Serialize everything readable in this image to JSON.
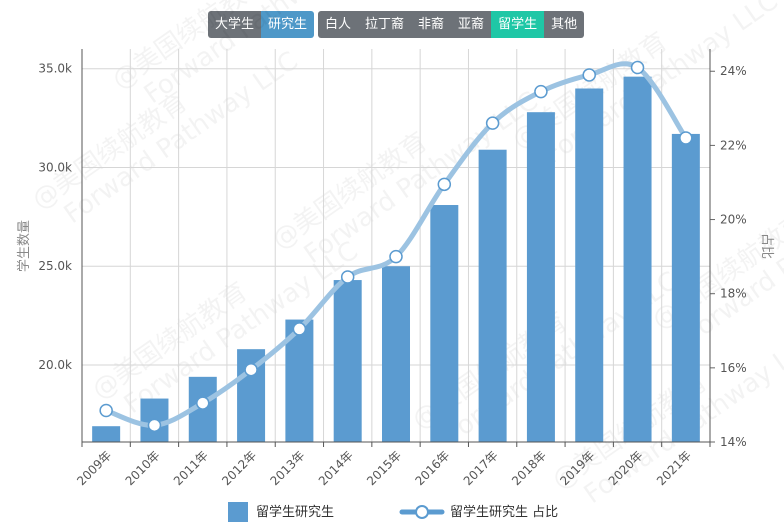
{
  "filters": {
    "level": [
      {
        "label": "大学生",
        "active": false
      },
      {
        "label": "研究生",
        "active": true
      }
    ],
    "group": [
      {
        "label": "白人",
        "active": false
      },
      {
        "label": "拉丁裔",
        "active": false
      },
      {
        "label": "非裔",
        "active": false
      },
      {
        "label": "亚裔",
        "active": false
      },
      {
        "label": "留学生",
        "active": true
      },
      {
        "label": "其他",
        "active": false
      }
    ]
  },
  "watermark": {
    "cn": "@美国续航教育",
    "en": "Forward Pathway LLC"
  },
  "colors": {
    "bar": "#5b9bd0",
    "line": "#9cc3e2",
    "active_level": "#4e98c8",
    "active_group": "#1fc7a6",
    "button": "#6d7278"
  },
  "chart_data": {
    "type": "bar",
    "categories": [
      "2009年",
      "2010年",
      "2011年",
      "2012年",
      "2013年",
      "2014年",
      "2015年",
      "2016年",
      "2017年",
      "2018年",
      "2019年",
      "2020年",
      "2021年"
    ],
    "series": [
      {
        "name": "留学生研究生",
        "type": "bar",
        "axis": "left",
        "values": [
          16900,
          18300,
          19400,
          20800,
          22300,
          24300,
          25000,
          28100,
          30900,
          32800,
          34000,
          34600,
          31700
        ]
      },
      {
        "name": "留学生研究生 占比",
        "type": "line",
        "axis": "right",
        "values": [
          14.85,
          14.45,
          15.05,
          15.95,
          17.05,
          18.45,
          19.0,
          20.95,
          22.6,
          23.45,
          23.9,
          24.1,
          22.2
        ]
      }
    ],
    "left_axis": {
      "label": "学生数量",
      "ticks": [
        "20.0k",
        "25.0k",
        "30.0k",
        "35.0k"
      ],
      "tick_values": [
        20000,
        25000,
        30000,
        35000
      ],
      "min": 16100,
      "max": 36000
    },
    "right_axis": {
      "label": "占比",
      "ticks": [
        "14%",
        "16%",
        "18%",
        "20%",
        "22%",
        "24%"
      ],
      "tick_values": [
        14,
        16,
        18,
        20,
        22,
        24
      ],
      "min": 14,
      "max": 24.6
    },
    "legend": {
      "bar": "留学生研究生",
      "line": "留学生研究生 占比"
    },
    "legend_position": "bottom-center",
    "grid": true
  }
}
